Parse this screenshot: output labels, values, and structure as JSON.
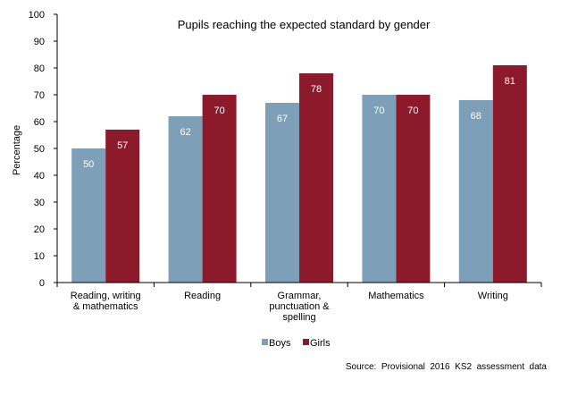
{
  "chart_data": {
    "type": "bar",
    "title": "Pupils reaching the expected standard by gender",
    "xlabel": "",
    "ylabel": "Percentage",
    "ylim": [
      0,
      100
    ],
    "yticks": [
      "0",
      "10",
      "20",
      "30",
      "40",
      "50",
      "60",
      "70",
      "80",
      "90",
      "100"
    ],
    "grid": false,
    "legend_position": "bottom-center",
    "categories": [
      [
        "Reading, writing",
        "& mathematics"
      ],
      [
        "Reading"
      ],
      [
        "Grammar,",
        "punctuation &",
        "spelling"
      ],
      [
        "Mathematics"
      ],
      [
        "Writing"
      ]
    ],
    "series": [
      {
        "name": "Boys",
        "color": "#7e9fb8",
        "values": [
          50,
          62,
          67,
          70,
          68
        ],
        "labels": [
          "50",
          "62",
          "67",
          "70",
          "68"
        ]
      },
      {
        "name": "Girls",
        "color": "#8c1a2a",
        "values": [
          57,
          70,
          78,
          70,
          81
        ],
        "labels": [
          "57",
          "70",
          "78",
          "70",
          "81"
        ]
      }
    ],
    "source": "Source:  Provisional  2016  KS2  assessment  data"
  }
}
